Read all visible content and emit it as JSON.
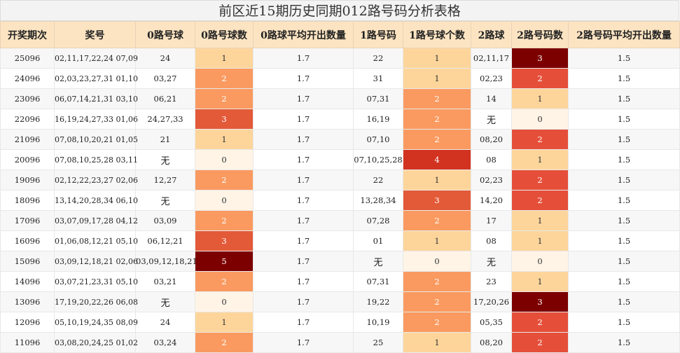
{
  "title": "前区近15期历史同期012路号码分析表格",
  "headers": [
    "开奖期次",
    "奖号",
    "0路号球",
    "0路号球数",
    "0路球平均开出数量",
    "1路号码",
    "1路号球个数",
    "2路球",
    "2路号码数",
    "2路号码平均开出数量"
  ],
  "rows": [
    {
      "period": "25096",
      "nums": "02,11,17,22,24 07,09",
      "r0": "24",
      "r0n": "1",
      "r0avg": "1.7",
      "r1": "22",
      "r1n": "1",
      "r2": "02,11,17",
      "r2n": "3",
      "r2avg": "1.5"
    },
    {
      "period": "24096",
      "nums": "02,03,23,27,31 01,10",
      "r0": "03,27",
      "r0n": "2",
      "r0avg": "1.7",
      "r1": "31",
      "r1n": "1",
      "r2": "02,23",
      "r2n": "2",
      "r2avg": "1.5"
    },
    {
      "period": "23096",
      "nums": "06,07,14,21,31 03,10",
      "r0": "06,21",
      "r0n": "2",
      "r0avg": "1.7",
      "r1": "07,31",
      "r1n": "2",
      "r2": "14",
      "r2n": "1",
      "r2avg": "1.5"
    },
    {
      "period": "22096",
      "nums": "16,19,24,27,33 01,06",
      "r0": "24,27,33",
      "r0n": "3",
      "r0avg": "1.7",
      "r1": "16,19",
      "r1n": "2",
      "r2": "无",
      "r2n": "0",
      "r2avg": "1.5"
    },
    {
      "period": "21096",
      "nums": "07,08,10,20,21 01,05",
      "r0": "21",
      "r0n": "1",
      "r0avg": "1.7",
      "r1": "07,10",
      "r1n": "2",
      "r2": "08,20",
      "r2n": "2",
      "r2avg": "1.5"
    },
    {
      "period": "20096",
      "nums": "07,08,10,25,28 03,11",
      "r0": "无",
      "r0n": "0",
      "r0avg": "1.7",
      "r1": "07,10,25,28",
      "r1n": "4",
      "r2": "08",
      "r2n": "1",
      "r2avg": "1.5"
    },
    {
      "period": "19096",
      "nums": "02,12,22,23,27 02,06",
      "r0": "12,27",
      "r0n": "2",
      "r0avg": "1.7",
      "r1": "22",
      "r1n": "1",
      "r2": "02,23",
      "r2n": "2",
      "r2avg": "1.5"
    },
    {
      "period": "18096",
      "nums": "13,14,20,28,34 06,10",
      "r0": "无",
      "r0n": "0",
      "r0avg": "1.7",
      "r1": "13,28,34",
      "r1n": "3",
      "r2": "14,20",
      "r2n": "2",
      "r2avg": "1.5"
    },
    {
      "period": "17096",
      "nums": "03,07,09,17,28 04,12",
      "r0": "03,09",
      "r0n": "2",
      "r0avg": "1.7",
      "r1": "07,28",
      "r1n": "2",
      "r2": "17",
      "r2n": "1",
      "r2avg": "1.5"
    },
    {
      "period": "16096",
      "nums": "01,06,08,12,21 05,10",
      "r0": "06,12,21",
      "r0n": "3",
      "r0avg": "1.7",
      "r1": "01",
      "r1n": "1",
      "r2": "08",
      "r2n": "1",
      "r2avg": "1.5"
    },
    {
      "period": "15096",
      "nums": "03,09,12,18,21 02,06",
      "r0": "03,09,12,18,21",
      "r0n": "5",
      "r0avg": "1.7",
      "r1": "无",
      "r1n": "0",
      "r2": "无",
      "r2n": "0",
      "r2avg": "1.5"
    },
    {
      "period": "14096",
      "nums": "03,07,21,23,31 05,10",
      "r0": "03,21",
      "r0n": "2",
      "r0avg": "1.7",
      "r1": "07,31",
      "r1n": "2",
      "r2": "23",
      "r2n": "1",
      "r2avg": "1.5"
    },
    {
      "period": "13096",
      "nums": "17,19,20,22,26 06,08",
      "r0": "无",
      "r0n": "0",
      "r0avg": "1.7",
      "r1": "19,22",
      "r1n": "2",
      "r2": "17,20,26",
      "r2n": "3",
      "r2avg": "1.5"
    },
    {
      "period": "12096",
      "nums": "05,10,19,24,35 08,09",
      "r0": "24",
      "r0n": "1",
      "r0avg": "1.7",
      "r1": "10,19",
      "r1n": "2",
      "r2": "05,35",
      "r2n": "2",
      "r2avg": "1.5"
    },
    {
      "period": "11096",
      "nums": "03,08,20,24,25 01,02",
      "r0": "03,24",
      "r0n": "2",
      "r0avg": "1.7",
      "r1": "25",
      "r1n": "1",
      "r2": "08,20",
      "r2n": "2",
      "r2avg": "1.5"
    }
  ],
  "heat_colors": {
    "0": "#fff4e6",
    "1": "#fdd59b",
    "2": "#fa9a60",
    "3": "#e35a38",
    "4": "#d23220",
    "5": "#7d0000"
  }
}
